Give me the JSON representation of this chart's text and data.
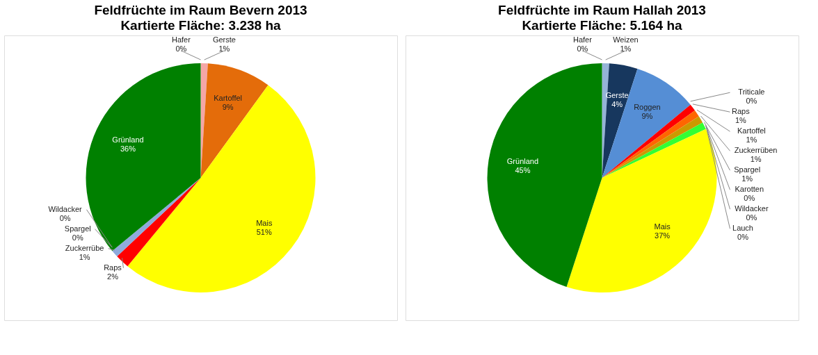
{
  "chart_data": [
    {
      "type": "pie",
      "title": "Feldfrüchte im Raum Bevern 2013",
      "subtitle": "Kartierte Fläche: 3.238 ha",
      "categories": [
        "Hafer",
        "Gerste",
        "Kartoffel",
        "Mais",
        "Raps",
        "Zuckerrübe",
        "Spargel",
        "Wildacker",
        "Grünland"
      ],
      "values": [
        0,
        1,
        9,
        51,
        2,
        1,
        0,
        0,
        36
      ],
      "colors": [
        "#1f3864",
        "#f4a6a6",
        "#e46c0a",
        "#ffff00",
        "#ff0000",
        "#8faadc",
        "#33cc33",
        "#7f0000",
        "#008000"
      ],
      "value_labels": [
        "0%",
        "1%",
        "9%",
        "51%",
        "2%",
        "1%",
        "0%",
        "0%",
        "36%"
      ],
      "legend": false
    },
    {
      "type": "pie",
      "title": "Feldfrüchte im Raum Hallah 2013",
      "subtitle": "Kartierte Fläche: 5.164 ha",
      "categories": [
        "Hafer",
        "Weizen",
        "Gerste",
        "Roggen",
        "Triticale",
        "Raps",
        "Kartoffel",
        "Zuckerrüben",
        "Spargel",
        "Karotten",
        "Wildacker",
        "Lauch",
        "Mais",
        "Grünland"
      ],
      "values": [
        0,
        1,
        4,
        9,
        0,
        1,
        1,
        1,
        1,
        0,
        0,
        0,
        37,
        45
      ],
      "colors": [
        "#1f3864",
        "#95b3d7",
        "#17375e",
        "#558ed5",
        "#4f81bd",
        "#ff0000",
        "#ff6600",
        "#cc9900",
        "#33ff33",
        "#ff9900",
        "#800000",
        "#7030a0",
        "#ffff00",
        "#008000"
      ],
      "value_labels": [
        "0%",
        "1%",
        "4%",
        "9%",
        "0%",
        "1%",
        "1%",
        "1%",
        "1%",
        "0%",
        "0%",
        "0%",
        "37%",
        "45%"
      ],
      "legend": false
    }
  ]
}
